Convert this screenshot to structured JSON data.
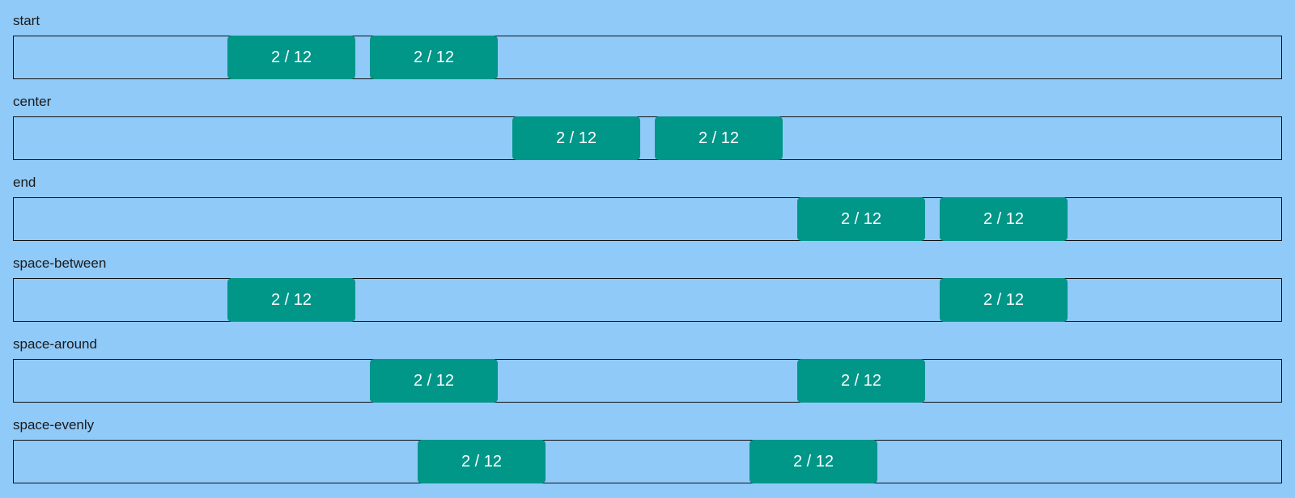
{
  "sections": [
    {
      "label": "start",
      "cells": [
        "2 / 12",
        "2 / 12"
      ]
    },
    {
      "label": "center",
      "cells": [
        "2 / 12",
        "2 / 12"
      ]
    },
    {
      "label": "end",
      "cells": [
        "2 / 12",
        "2 / 12"
      ]
    },
    {
      "label": "space-between",
      "cells": [
        "2 / 12",
        "2 / 12"
      ]
    },
    {
      "label": "space-around",
      "cells": [
        "2 / 12",
        "2 / 12"
      ]
    },
    {
      "label": "space-evenly",
      "cells": [
        "2 / 12",
        "2 / 12"
      ]
    }
  ],
  "colors": {
    "background": "#90caf9",
    "cell": "#009688",
    "cell_text": "#ffffff",
    "row_border": "#111111"
  }
}
